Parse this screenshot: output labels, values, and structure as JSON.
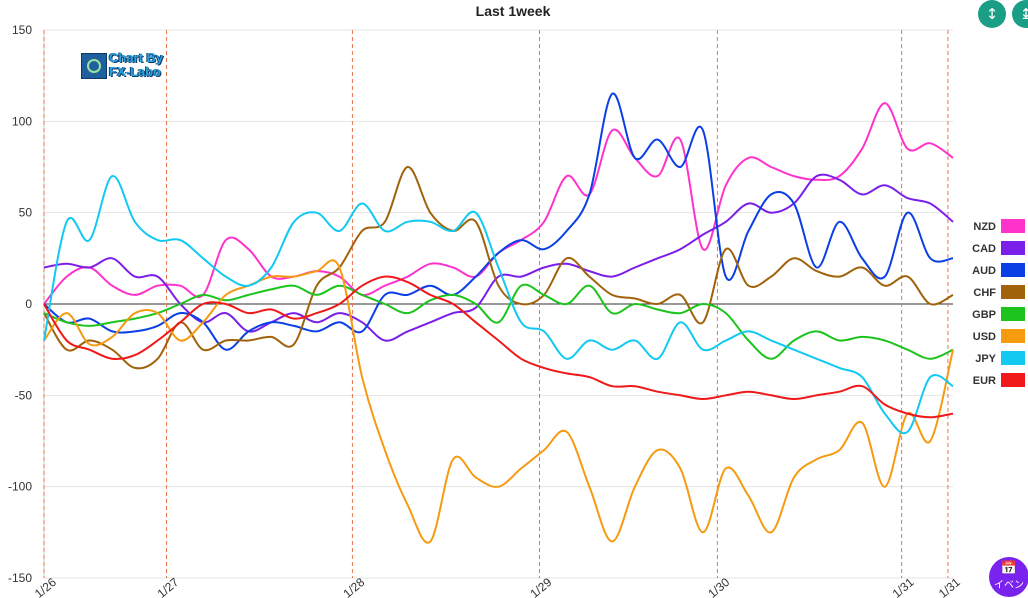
{
  "title": "Last 1week",
  "logo": {
    "line1": "Chart By",
    "line2": "FX-Labo"
  },
  "buttons": {
    "compress_icon": "compress-icon",
    "expand_icon": "expand-icon",
    "event_label": "イベン",
    "event_icon": "calendar-icon"
  },
  "chart_data": {
    "type": "line",
    "title": "Last 1week",
    "ylim": [
      -150,
      150
    ],
    "y_ticks": [
      150,
      100,
      50,
      0,
      -50,
      -100,
      -150
    ],
    "x_ticks": [
      "1/26",
      "1/27",
      "1/28",
      "1/29",
      "1/30",
      "1/31",
      "1/31"
    ],
    "x_tick_pos": [
      0,
      0.1348,
      0.3393,
      0.5451,
      0.7408,
      0.9435,
      0.9944
    ],
    "grid": true,
    "legend_position": "right",
    "x": [
      0.0,
      0.025,
      0.05,
      0.075,
      0.1,
      0.125,
      0.15,
      0.175,
      0.2,
      0.225,
      0.25,
      0.275,
      0.3,
      0.325,
      0.35,
      0.375,
      0.4,
      0.425,
      0.45,
      0.475,
      0.5,
      0.525,
      0.55,
      0.575,
      0.6,
      0.625,
      0.65,
      0.675,
      0.7,
      0.725,
      0.75,
      0.775,
      0.8,
      0.825,
      0.85,
      0.875,
      0.9,
      0.925,
      0.95,
      0.975,
      1.0
    ],
    "series": [
      {
        "name": "NZD",
        "color": "#ff33cc",
        "values": [
          0,
          15,
          20,
          10,
          5,
          10,
          10,
          5,
          35,
          30,
          15,
          15,
          18,
          15,
          5,
          10,
          15,
          22,
          20,
          15,
          28,
          35,
          45,
          70,
          60,
          95,
          80,
          70,
          90,
          30,
          65,
          80,
          75,
          70,
          68,
          70,
          85,
          110,
          85,
          88,
          80
        ]
      },
      {
        "name": "CAD",
        "color": "#7a1ee8",
        "values": [
          20,
          22,
          20,
          25,
          15,
          15,
          0,
          -10,
          -5,
          -15,
          -10,
          -5,
          -10,
          -5,
          -10,
          -20,
          -15,
          -10,
          -5,
          -2,
          15,
          15,
          20,
          22,
          18,
          15,
          20,
          25,
          30,
          38,
          45,
          55,
          50,
          55,
          70,
          68,
          60,
          65,
          58,
          55,
          45
        ]
      },
      {
        "name": "AUD",
        "color": "#0b3fe6",
        "values": [
          0,
          -10,
          -8,
          -15,
          -15,
          -12,
          -5,
          -10,
          -25,
          -15,
          -10,
          -12,
          -15,
          -10,
          -15,
          5,
          5,
          10,
          5,
          15,
          28,
          35,
          30,
          40,
          60,
          115,
          80,
          90,
          75,
          95,
          15,
          40,
          60,
          55,
          20,
          45,
          25,
          15,
          50,
          25,
          25
        ]
      },
      {
        "name": "CHF",
        "color": "#a0620a",
        "values": [
          -5,
          -25,
          -20,
          -25,
          -35,
          -30,
          -10,
          -25,
          -20,
          -20,
          -18,
          -22,
          10,
          20,
          40,
          45,
          75,
          50,
          40,
          45,
          10,
          0,
          5,
          25,
          15,
          5,
          3,
          0,
          5,
          -10,
          30,
          10,
          15,
          25,
          18,
          15,
          20,
          10,
          15,
          0,
          5
        ]
      },
      {
        "name": "GBP",
        "color": "#1dc41d",
        "values": [
          -5,
          -10,
          -12,
          -10,
          -8,
          -5,
          0,
          5,
          2,
          5,
          8,
          10,
          5,
          10,
          5,
          0,
          -5,
          2,
          5,
          0,
          -10,
          10,
          5,
          0,
          10,
          -5,
          0,
          -3,
          -5,
          0,
          -5,
          -20,
          -30,
          -20,
          -15,
          -20,
          -18,
          -20,
          -25,
          -30,
          -25
        ]
      },
      {
        "name": "USD",
        "color": "#f69a10",
        "values": [
          -20,
          -5,
          -22,
          -18,
          -5,
          -5,
          -20,
          -10,
          5,
          10,
          15,
          15,
          18,
          20,
          -40,
          -80,
          -110,
          -130,
          -85,
          -95,
          -100,
          -90,
          -80,
          -70,
          -100,
          -130,
          -100,
          -80,
          -90,
          -125,
          -90,
          -105,
          -125,
          -95,
          -85,
          -80,
          -65,
          -100,
          -60,
          -75,
          -25
        ]
      },
      {
        "name": "JPY",
        "color": "#12c9f2",
        "values": [
          -20,
          45,
          35,
          70,
          45,
          35,
          35,
          25,
          15,
          10,
          20,
          45,
          50,
          40,
          55,
          40,
          45,
          45,
          40,
          50,
          20,
          -10,
          -15,
          -30,
          -20,
          -25,
          -20,
          -30,
          -10,
          -25,
          -20,
          -15,
          -20,
          -25,
          -30,
          -35,
          -40,
          -60,
          -70,
          -40,
          -45
        ]
      },
      {
        "name": "EUR",
        "color": "#f01818",
        "values": [
          0,
          -20,
          -25,
          -30,
          -28,
          -20,
          -10,
          0,
          0,
          -5,
          -3,
          -8,
          -5,
          0,
          10,
          15,
          12,
          5,
          0,
          -10,
          -20,
          -30,
          -35,
          -38,
          -40,
          -45,
          -45,
          -48,
          -50,
          -52,
          -50,
          -48,
          -50,
          -52,
          -50,
          -48,
          -45,
          -55,
          -60,
          -62,
          -60
        ]
      }
    ]
  }
}
